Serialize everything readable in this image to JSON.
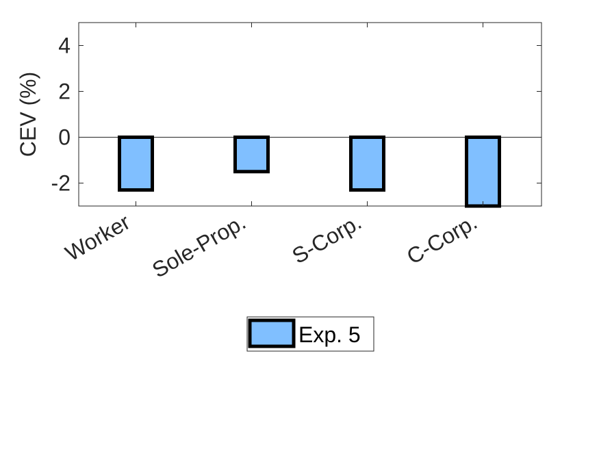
{
  "chart_data": {
    "type": "bar",
    "categories": [
      "Worker",
      "Sole-Prop.",
      "S-Corp.",
      "C-Corp."
    ],
    "series": [
      {
        "name": "Exp. 5",
        "values": [
          -2.3,
          -1.5,
          -2.3,
          -3.0
        ],
        "color": "#80BFFF",
        "edge_color": "#000000"
      }
    ],
    "xlabel": "",
    "ylabel": "CEV (%)",
    "ylim": [
      -3,
      5
    ],
    "yticks": [
      -2,
      0,
      2,
      4
    ],
    "ytick_labels": [
      "-2",
      "0",
      "2",
      "4"
    ],
    "grid": false,
    "legend_position": "bottom-center",
    "zero_line": true
  }
}
